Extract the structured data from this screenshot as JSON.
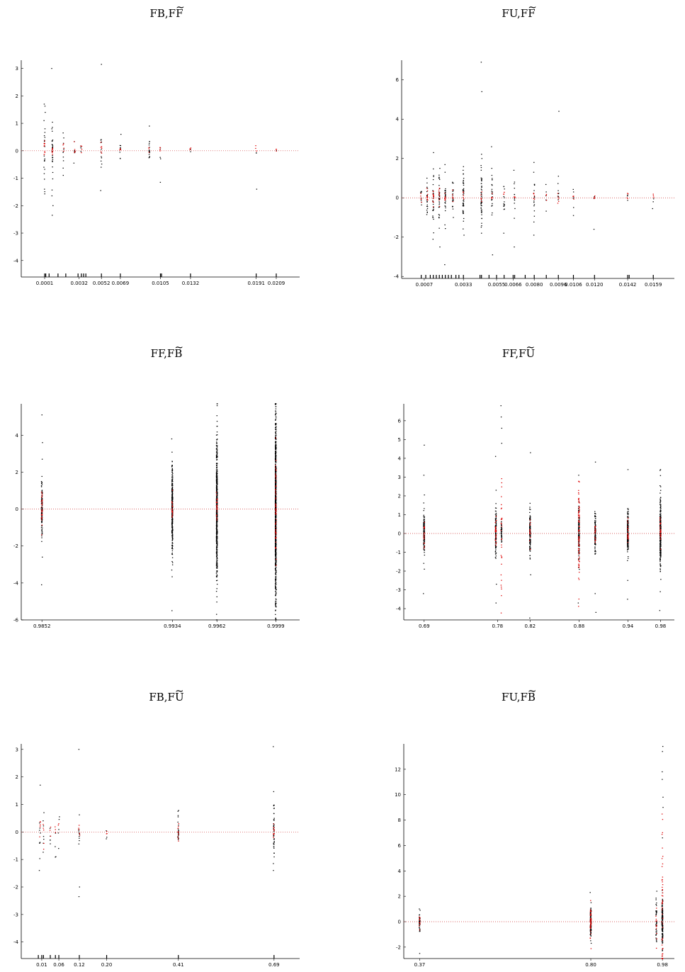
{
  "colors": {
    "main_points": "#000000",
    "highlight_points": "#dd0000",
    "zero_line": "#cc3333",
    "axis": "#000000"
  },
  "chart_data": [
    {
      "type": "scatter",
      "title_main": "FB,F",
      "title_accent": "F",
      "xticks": [
        "0.0001",
        "0.0032",
        "0.0052",
        "0.0069",
        "0.0105",
        "0.0132",
        "0.0191",
        "0.0209"
      ],
      "xtick_values": [
        0.0001,
        0.0032,
        0.0052,
        0.0069,
        0.0105,
        0.0132,
        0.0191,
        0.0209
      ],
      "xlim": [
        -0.002,
        0.023
      ],
      "ylim": [
        -4.6,
        3.3
      ],
      "yticks": [
        -4,
        -3,
        -2,
        -1,
        0,
        1,
        2,
        3
      ],
      "rug": [
        0.0001,
        0.0002,
        0.0005,
        0.0013,
        0.002,
        0.0031,
        0.0034,
        0.0036,
        0.0038,
        0.0052,
        0.0069,
        0.0105,
        0.0106,
        0.0132,
        0.0191,
        0.0209
      ],
      "groups": [
        {
          "x": 0.0001,
          "n_black": 18,
          "spread_black": 0.7,
          "n_red": 10,
          "spread_red": 0.2,
          "extras": [
            1.7,
            1.4,
            -1.4,
            1.1,
            -0.6
          ]
        },
        {
          "x": 0.0008,
          "n_black": 30,
          "spread_black": 0.5,
          "n_red": 8,
          "spread_red": 0.15,
          "extras": [
            3.0,
            -2.0,
            -2.35,
            0.8
          ]
        },
        {
          "x": 0.0018,
          "n_black": 10,
          "spread_black": 0.3,
          "n_red": 4,
          "spread_red": 0.12,
          "extras": [
            0.65
          ]
        },
        {
          "x": 0.0028,
          "n_black": 5,
          "spread_black": 0.2,
          "n_red": 5,
          "spread_red": 0.15,
          "extras": [
            -0.45
          ]
        },
        {
          "x": 0.0034,
          "n_black": 3,
          "spread_black": 0.15,
          "n_red": 4,
          "spread_red": 0.1,
          "extras": []
        },
        {
          "x": 0.0052,
          "n_black": 10,
          "spread_black": 0.3,
          "n_red": 6,
          "spread_red": 0.1,
          "extras": [
            3.15,
            -1.45,
            -0.6
          ]
        },
        {
          "x": 0.0069,
          "n_black": 8,
          "spread_black": 0.25,
          "n_red": 5,
          "spread_red": 0.1,
          "extras": [
            0.6
          ]
        },
        {
          "x": 0.0095,
          "n_black": 14,
          "spread_black": 0.3,
          "n_red": 3,
          "spread_red": 0.1,
          "extras": [
            0.9
          ]
        },
        {
          "x": 0.0105,
          "n_black": 4,
          "spread_black": 0.2,
          "n_red": 4,
          "spread_red": 0.1,
          "extras": [
            -1.15
          ]
        },
        {
          "x": 0.0132,
          "n_black": 2,
          "spread_black": 0.1,
          "n_red": 3,
          "spread_red": 0.05,
          "extras": []
        },
        {
          "x": 0.0191,
          "n_black": 2,
          "spread_black": 0.1,
          "n_red": 3,
          "spread_red": 0.08,
          "extras": [
            -1.4
          ]
        },
        {
          "x": 0.0209,
          "n_black": 1,
          "spread_black": 0.05,
          "n_red": 3,
          "spread_red": 0.05,
          "extras": []
        }
      ]
    },
    {
      "type": "scatter",
      "title_main": "FU,F",
      "title_accent": "F",
      "xticks": [
        "0.0007",
        "0.0033",
        "0.0055",
        "0.0066",
        "0.0080",
        "0.0096",
        "0.0106",
        "0.0120",
        "0.0142",
        "0.0159"
      ],
      "xtick_values": [
        0.0007,
        0.0033,
        0.0055,
        0.0066,
        0.008,
        0.0096,
        0.0106,
        0.012,
        0.0142,
        0.0159
      ],
      "xlim": [
        -0.0008,
        0.0173
      ],
      "ylim": [
        -4.1,
        7.0
      ],
      "yticks": [
        -4,
        -2,
        0,
        2,
        4,
        6
      ],
      "rug": [
        0.0005,
        0.0008,
        0.0011,
        0.0013,
        0.0015,
        0.0017,
        0.0019,
        0.0021,
        0.0023,
        0.0025,
        0.0028,
        0.003,
        0.0033,
        0.0044,
        0.0045,
        0.005,
        0.0055,
        0.006,
        0.0066,
        0.0067,
        0.0074,
        0.008,
        0.0088,
        0.0096,
        0.0106,
        0.012,
        0.0142,
        0.0143,
        0.0159
      ],
      "groups": [
        {
          "x": 0.0005,
          "n_black": 10,
          "spread_black": 0.3,
          "n_red": 5,
          "spread_red": 0.15,
          "extras": []
        },
        {
          "x": 0.0009,
          "n_black": 20,
          "spread_black": 0.5,
          "n_red": 10,
          "spread_red": 0.2,
          "extras": [
            1.0
          ]
        },
        {
          "x": 0.0013,
          "n_black": 30,
          "spread_black": 0.7,
          "n_red": 12,
          "spread_red": 0.25,
          "extras": [
            2.3,
            -1.0
          ]
        },
        {
          "x": 0.0017,
          "n_black": 30,
          "spread_black": 0.7,
          "n_red": 10,
          "spread_red": 0.25,
          "extras": [
            1.5,
            -2.5
          ]
        },
        {
          "x": 0.0021,
          "n_black": 25,
          "spread_black": 0.6,
          "n_red": 8,
          "spread_red": 0.2,
          "extras": [
            1.3,
            -3.4
          ]
        },
        {
          "x": 0.0026,
          "n_black": 20,
          "spread_black": 0.5,
          "n_red": 6,
          "spread_red": 0.2,
          "extras": [
            -1.0
          ]
        },
        {
          "x": 0.0033,
          "n_black": 45,
          "spread_black": 0.7,
          "n_red": 5,
          "spread_red": 0.15,
          "extras": [
            1.4,
            -1.9
          ]
        },
        {
          "x": 0.0045,
          "n_black": 50,
          "spread_black": 1.0,
          "n_red": 6,
          "spread_red": 0.2,
          "extras": [
            6.9,
            5.4,
            2.0,
            -1.8
          ]
        },
        {
          "x": 0.0052,
          "n_black": 20,
          "spread_black": 0.6,
          "n_red": 4,
          "spread_red": 0.15,
          "extras": [
            2.6,
            -2.9,
            1.5
          ]
        },
        {
          "x": 0.006,
          "n_black": 14,
          "spread_black": 0.5,
          "n_red": 4,
          "spread_red": 0.15,
          "extras": [
            -1.8
          ]
        },
        {
          "x": 0.0067,
          "n_black": 12,
          "spread_black": 0.5,
          "n_red": 4,
          "spread_red": 0.15,
          "extras": [
            1.4,
            -2.5
          ]
        },
        {
          "x": 0.008,
          "n_black": 14,
          "spread_black": 0.6,
          "n_red": 5,
          "spread_red": 0.15,
          "extras": [
            1.8,
            -1.9,
            1.3
          ]
        },
        {
          "x": 0.0088,
          "n_black": 6,
          "spread_black": 0.4,
          "n_red": 3,
          "spread_red": 0.1,
          "extras": []
        },
        {
          "x": 0.0096,
          "n_black": 8,
          "spread_black": 0.4,
          "n_red": 5,
          "spread_red": 0.25,
          "extras": [
            4.4,
            1.1
          ]
        },
        {
          "x": 0.0106,
          "n_black": 5,
          "spread_black": 0.3,
          "n_red": 4,
          "spread_red": 0.1,
          "extras": [
            -0.9
          ]
        },
        {
          "x": 0.012,
          "n_black": 2,
          "spread_black": 0.2,
          "n_red": 4,
          "spread_red": 0.1,
          "extras": [
            -1.6
          ]
        },
        {
          "x": 0.0142,
          "n_black": 3,
          "spread_black": 0.15,
          "n_red": 4,
          "spread_red": 0.15,
          "extras": []
        },
        {
          "x": 0.0159,
          "n_black": 2,
          "spread_black": 0.2,
          "n_red": 3,
          "spread_red": 0.1,
          "extras": [
            -0.55
          ]
        }
      ]
    },
    {
      "type": "scatter",
      "title_main": "FF,F",
      "title_accent": "B",
      "xticks": [
        "0.9852",
        "0.9934",
        "0.9962",
        "0.9999"
      ],
      "xtick_values": [
        0.9852,
        0.9934,
        0.9962,
        0.9999
      ],
      "xlim": [
        0.9839,
        1.0014
      ],
      "ylim": [
        -6.0,
        5.7
      ],
      "yticks": [
        -6,
        -4,
        -2,
        0,
        2,
        4
      ],
      "rug": [],
      "groups": [
        {
          "x": 0.9852,
          "n_black": 120,
          "spread_black": 0.8,
          "n_red": 30,
          "spread_red": 0.5,
          "extras": [
            5.1,
            3.6,
            -4.1,
            -2.6,
            2.7
          ]
        },
        {
          "x": 0.9934,
          "n_black": 320,
          "spread_black": 1.2,
          "n_red": 20,
          "spread_red": 0.3,
          "extras": [
            3.8,
            -5.5,
            -3.3
          ]
        },
        {
          "x": 0.9962,
          "n_black": 600,
          "spread_black": 1.8,
          "n_red": 25,
          "spread_red": 0.5,
          "extras": [
            5.8,
            5.6,
            -5.7
          ]
        },
        {
          "x": 0.9999,
          "n_black": 900,
          "spread_black": 2.4,
          "n_red": 60,
          "spread_red": 1.6,
          "extras": [
            5.8,
            -5.9
          ]
        }
      ]
    },
    {
      "type": "scatter",
      "title_main": "FF,F",
      "title_accent": "U",
      "xticks": [
        "0.69",
        "0.78",
        "0.82",
        "0.88",
        "0.94",
        "0.98"
      ],
      "xtick_values": [
        0.69,
        0.78,
        0.82,
        0.88,
        0.94,
        0.98
      ],
      "xlim": [
        0.665,
        0.997
      ],
      "ylim": [
        -4.6,
        6.9
      ],
      "yticks": [
        -4,
        -3,
        -2,
        -1,
        0,
        1,
        2,
        3,
        4,
        5,
        6
      ],
      "rug": [],
      "groups": [
        {
          "x": 0.69,
          "n_black": 120,
          "spread_black": 0.6,
          "n_red": 20,
          "spread_red": 0.4,
          "extras": [
            4.7,
            3.1,
            -3.2,
            -1.9
          ]
        },
        {
          "x": 0.778,
          "n_black": 100,
          "spread_black": 0.6,
          "n_red": 30,
          "spread_red": 0.4,
          "extras": [
            4.1,
            2.3,
            -2.7,
            -3.7
          ]
        },
        {
          "x": 0.785,
          "n_black": 40,
          "spread_black": 0.3,
          "n_red": 30,
          "spread_red": 2.4,
          "extras": [
            6.8,
            6.2,
            5.6,
            4.8
          ]
        },
        {
          "x": 0.82,
          "n_black": 120,
          "spread_black": 0.6,
          "n_red": 15,
          "spread_red": 0.3,
          "extras": [
            4.3,
            -4.5,
            -2.2
          ]
        },
        {
          "x": 0.88,
          "n_black": 150,
          "spread_black": 0.7,
          "n_red": 80,
          "spread_red": 1.4,
          "extras": [
            3.1,
            -3.7
          ]
        },
        {
          "x": 0.9,
          "n_black": 120,
          "spread_black": 0.5,
          "n_red": 15,
          "spread_red": 0.3,
          "extras": [
            3.8,
            -3.2,
            -4.2
          ]
        },
        {
          "x": 0.94,
          "n_black": 200,
          "spread_black": 0.6,
          "n_red": 20,
          "spread_red": 0.3,
          "extras": [
            3.4,
            -3.5,
            -2.5
          ]
        },
        {
          "x": 0.98,
          "n_black": 320,
          "spread_black": 0.9,
          "n_red": 30,
          "spread_red": 0.4,
          "extras": [
            3.4,
            -4.1,
            -3.1
          ]
        }
      ]
    },
    {
      "type": "scatter",
      "title_main": "FB,F",
      "title_accent": "U",
      "xticks": [
        "0.01",
        "0.06",
        "0.12",
        "0.20",
        "0.41",
        "0.69"
      ],
      "xtick_values": [
        0.01,
        0.06,
        0.12,
        0.2,
        0.41,
        0.69
      ],
      "xlim": [
        -0.05,
        0.765
      ],
      "ylim": [
        -4.6,
        3.2
      ],
      "yticks": [
        -4,
        -3,
        -2,
        -1,
        0,
        1,
        2,
        3
      ],
      "rug": [
        0.0,
        0.01,
        0.015,
        0.035,
        0.05,
        0.06,
        0.12,
        0.2,
        0.41,
        0.69
      ],
      "groups": [
        {
          "x": 0.005,
          "n_black": 8,
          "spread_black": 0.5,
          "n_red": 6,
          "spread_red": 0.3,
          "extras": [
            1.7,
            -1.4
          ]
        },
        {
          "x": 0.015,
          "n_black": 6,
          "spread_black": 0.4,
          "n_red": 5,
          "spread_red": 0.3,
          "extras": [
            0.7
          ]
        },
        {
          "x": 0.035,
          "n_black": 4,
          "spread_black": 0.4,
          "n_red": 3,
          "spread_red": 0.2,
          "extras": [
            -0.3
          ]
        },
        {
          "x": 0.05,
          "n_black": 3,
          "spread_black": 0.5,
          "n_red": 3,
          "spread_red": 0.3,
          "extras": [
            -0.9
          ]
        },
        {
          "x": 0.06,
          "n_black": 3,
          "spread_black": 0.4,
          "n_red": 2,
          "spread_red": 0.2,
          "extras": [
            0.55,
            -0.6
          ]
        },
        {
          "x": 0.12,
          "n_black": 10,
          "spread_black": 0.3,
          "n_red": 6,
          "spread_red": 0.15,
          "extras": [
            3.0,
            -2.0,
            -2.35
          ]
        },
        {
          "x": 0.2,
          "n_black": 2,
          "spread_black": 0.3,
          "n_red": 3,
          "spread_red": 0.2,
          "extras": [
            -0.25
          ]
        },
        {
          "x": 0.41,
          "n_black": 18,
          "spread_black": 0.3,
          "n_red": 10,
          "spread_red": 0.15,
          "extras": [
            0.75
          ]
        },
        {
          "x": 0.69,
          "n_black": 40,
          "spread_black": 0.5,
          "n_red": 12,
          "spread_red": 0.2,
          "extras": [
            3.1,
            -1.4,
            -1.15,
            0.95
          ]
        }
      ]
    },
    {
      "type": "scatter",
      "title_main": "FU,F",
      "title_accent": "B",
      "xticks": [
        "0.37",
        "0.80",
        "0.98"
      ],
      "xtick_values": [
        0.37,
        0.8,
        0.98
      ],
      "xlim": [
        0.33,
        1.01
      ],
      "ylim": [
        -2.9,
        14.0
      ],
      "yticks": [
        -2,
        0,
        2,
        4,
        6,
        8,
        10,
        12
      ],
      "rug": [],
      "groups": [
        {
          "x": 0.37,
          "n_black": 40,
          "spread_black": 0.4,
          "n_red": 10,
          "spread_red": 0.3,
          "extras": [
            0.9,
            -2.5
          ]
        },
        {
          "x": 0.8,
          "n_black": 120,
          "spread_black": 0.6,
          "n_red": 40,
          "spread_red": 0.6,
          "extras": [
            2.3,
            -1.7
          ]
        },
        {
          "x": 0.965,
          "n_black": 40,
          "spread_black": 0.8,
          "n_red": 12,
          "spread_red": 0.8,
          "extras": [
            2.4,
            -1.4
          ]
        },
        {
          "x": 0.98,
          "n_black": 160,
          "spread_black": 0.9,
          "n_red": 60,
          "spread_red": 4.0,
          "extras": [
            13.8,
            13.4,
            11.8,
            11.2,
            9.8,
            9.0,
            6.6,
            -2.9
          ]
        }
      ]
    }
  ]
}
